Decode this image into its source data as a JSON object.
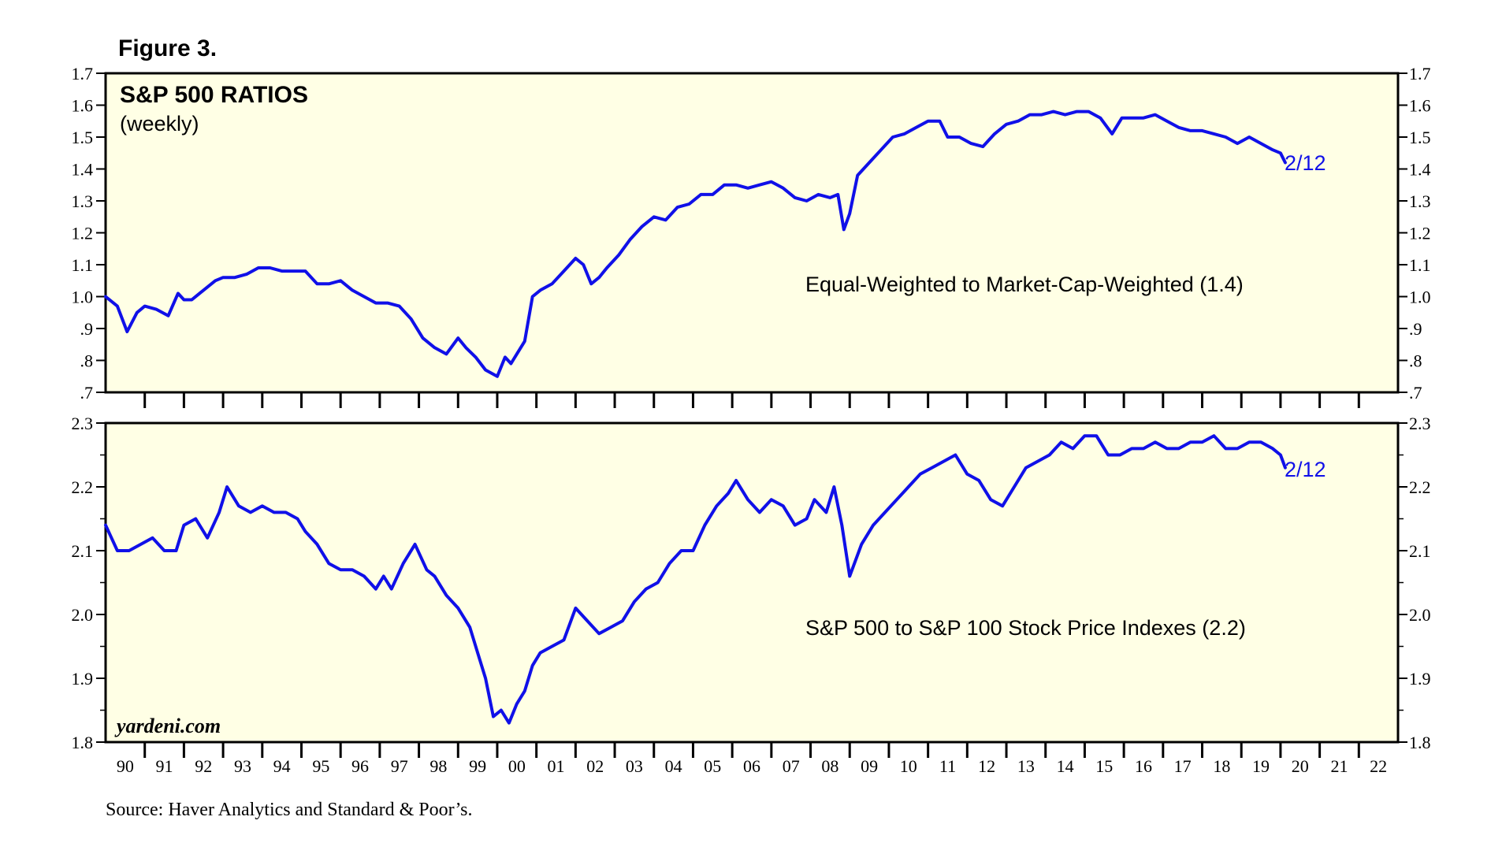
{
  "figure_label": "Figure 3.",
  "source_note": "Source: Haver Analytics and Standard & Poor’s.",
  "watermark": "yardeni.com",
  "colors": {
    "panel_bg": "#FFFFE5",
    "line": "#1010E8",
    "label": "#1010E8",
    "axis": "#000000"
  },
  "chart_data": [
    {
      "type": "line",
      "title": "S&P 500 RATIOS",
      "subtitle": "(weekly)",
      "series_label": "Equal-Weighted to Market-Cap-Weighted (1.4)",
      "end_label": "2/12",
      "ylim": [
        0.7,
        1.7
      ],
      "y_ticks": [
        0.7,
        0.8,
        0.9,
        1.0,
        1.1,
        1.2,
        1.3,
        1.4,
        1.5,
        1.6,
        1.7
      ],
      "y_tick_labels": [
        ".7",
        ".8",
        ".9",
        "1.0",
        "1.1",
        "1.2",
        "1.3",
        "1.4",
        "1.5",
        "1.6",
        "1.7"
      ],
      "xlim": [
        1990,
        2023
      ],
      "x": [
        1990.0,
        1990.3,
        1990.55,
        1990.8,
        1991.0,
        1991.3,
        1991.6,
        1991.85,
        1992.0,
        1992.2,
        1992.5,
        1992.8,
        1993.0,
        1993.3,
        1993.6,
        1993.9,
        1994.2,
        1994.5,
        1994.8,
        1995.1,
        1995.4,
        1995.7,
        1996.0,
        1996.3,
        1996.6,
        1996.9,
        1997.2,
        1997.5,
        1997.8,
        1998.1,
        1998.4,
        1998.7,
        1999.0,
        1999.2,
        1999.45,
        1999.7,
        2000.0,
        2000.2,
        2000.35,
        2000.5,
        2000.7,
        2000.9,
        2001.1,
        2001.4,
        2001.7,
        2002.0,
        2002.2,
        2002.4,
        2002.6,
        2002.8,
        2003.1,
        2003.4,
        2003.7,
        2004.0,
        2004.3,
        2004.6,
        2004.9,
        2005.2,
        2005.5,
        2005.8,
        2006.1,
        2006.4,
        2006.7,
        2007.0,
        2007.3,
        2007.6,
        2007.9,
        2008.2,
        2008.5,
        2008.7,
        2008.85,
        2009.0,
        2009.2,
        2009.5,
        2009.8,
        2010.1,
        2010.4,
        2010.7,
        2011.0,
        2011.3,
        2011.5,
        2011.8,
        2012.1,
        2012.4,
        2012.7,
        2013.0,
        2013.3,
        2013.6,
        2013.9,
        2014.2,
        2014.5,
        2014.8,
        2015.1,
        2015.4,
        2015.7,
        2015.95,
        2016.2,
        2016.5,
        2016.8,
        2017.1,
        2017.4,
        2017.7,
        2018.0,
        2018.3,
        2018.6,
        2018.9,
        2019.2,
        2019.5,
        2019.8,
        2020.0,
        2020.12
      ],
      "values": [
        1.0,
        0.97,
        0.89,
        0.95,
        0.97,
        0.96,
        0.94,
        1.01,
        0.99,
        0.99,
        1.02,
        1.05,
        1.06,
        1.06,
        1.07,
        1.09,
        1.09,
        1.08,
        1.08,
        1.08,
        1.04,
        1.04,
        1.05,
        1.02,
        1.0,
        0.98,
        0.98,
        0.97,
        0.93,
        0.87,
        0.84,
        0.82,
        0.87,
        0.84,
        0.81,
        0.77,
        0.75,
        0.81,
        0.79,
        0.82,
        0.86,
        1.0,
        1.02,
        1.04,
        1.08,
        1.12,
        1.1,
        1.04,
        1.06,
        1.09,
        1.13,
        1.18,
        1.22,
        1.25,
        1.24,
        1.28,
        1.29,
        1.32,
        1.32,
        1.35,
        1.35,
        1.34,
        1.35,
        1.36,
        1.34,
        1.31,
        1.3,
        1.32,
        1.31,
        1.32,
        1.21,
        1.26,
        1.38,
        1.42,
        1.46,
        1.5,
        1.51,
        1.53,
        1.55,
        1.55,
        1.5,
        1.5,
        1.48,
        1.47,
        1.51,
        1.54,
        1.55,
        1.57,
        1.57,
        1.58,
        1.57,
        1.58,
        1.58,
        1.56,
        1.51,
        1.56,
        1.56,
        1.56,
        1.57,
        1.55,
        1.53,
        1.52,
        1.52,
        1.51,
        1.5,
        1.48,
        1.5,
        1.48,
        1.46,
        1.45,
        1.42
      ]
    },
    {
      "type": "line",
      "series_label": "S&P 500 to S&P 100 Stock Price Indexes (2.2)",
      "end_label": "2/12",
      "ylim": [
        1.8,
        2.3
      ],
      "y_ticks": [
        1.8,
        1.9,
        2.0,
        2.1,
        2.2,
        2.3
      ],
      "y_tick_labels": [
        "1.8",
        "1.9",
        "2.0",
        "2.1",
        "2.2",
        "2.3"
      ],
      "xlim": [
        1990,
        2023
      ],
      "x_tick_labels": [
        "90",
        "91",
        "92",
        "93",
        "94",
        "95",
        "96",
        "97",
        "98",
        "99",
        "00",
        "01",
        "02",
        "03",
        "04",
        "05",
        "06",
        "07",
        "08",
        "09",
        "10",
        "11",
        "12",
        "13",
        "14",
        "15",
        "16",
        "17",
        "18",
        "19",
        "20",
        "21",
        "22"
      ],
      "x": [
        1990.0,
        1990.3,
        1990.6,
        1990.9,
        1991.2,
        1991.5,
        1991.8,
        1992.0,
        1992.3,
        1992.6,
        1992.9,
        1993.1,
        1993.4,
        1993.7,
        1994.0,
        1994.3,
        1994.6,
        1994.9,
        1995.1,
        1995.4,
        1995.7,
        1996.0,
        1996.3,
        1996.6,
        1996.9,
        1997.1,
        1997.3,
        1997.6,
        1997.9,
        1998.2,
        1998.4,
        1998.7,
        1999.0,
        1999.3,
        1999.5,
        1999.7,
        1999.9,
        2000.1,
        2000.3,
        2000.5,
        2000.7,
        2000.9,
        2001.1,
        2001.4,
        2001.7,
        2002.0,
        2002.3,
        2002.6,
        2002.9,
        2003.2,
        2003.5,
        2003.8,
        2004.1,
        2004.4,
        2004.7,
        2005.0,
        2005.3,
        2005.6,
        2005.9,
        2006.1,
        2006.4,
        2006.7,
        2007.0,
        2007.3,
        2007.6,
        2007.9,
        2008.1,
        2008.4,
        2008.6,
        2008.8,
        2009.0,
        2009.3,
        2009.6,
        2009.9,
        2010.2,
        2010.5,
        2010.8,
        2011.1,
        2011.4,
        2011.7,
        2012.0,
        2012.3,
        2012.6,
        2012.9,
        2013.2,
        2013.5,
        2013.8,
        2014.1,
        2014.4,
        2014.7,
        2015.0,
        2015.3,
        2015.6,
        2015.9,
        2016.2,
        2016.5,
        2016.8,
        2017.1,
        2017.4,
        2017.7,
        2018.0,
        2018.3,
        2018.6,
        2018.9,
        2019.2,
        2019.5,
        2019.8,
        2020.0,
        2020.12
      ],
      "values": [
        2.14,
        2.1,
        2.1,
        2.11,
        2.12,
        2.1,
        2.1,
        2.14,
        2.15,
        2.12,
        2.16,
        2.2,
        2.17,
        2.16,
        2.17,
        2.16,
        2.16,
        2.15,
        2.13,
        2.11,
        2.08,
        2.07,
        2.07,
        2.06,
        2.04,
        2.06,
        2.04,
        2.08,
        2.11,
        2.07,
        2.06,
        2.03,
        2.01,
        1.98,
        1.94,
        1.9,
        1.84,
        1.85,
        1.83,
        1.86,
        1.88,
        1.92,
        1.94,
        1.95,
        1.96,
        2.01,
        1.99,
        1.97,
        1.98,
        1.99,
        2.02,
        2.04,
        2.05,
        2.08,
        2.1,
        2.1,
        2.14,
        2.17,
        2.19,
        2.21,
        2.18,
        2.16,
        2.18,
        2.17,
        2.14,
        2.15,
        2.18,
        2.16,
        2.2,
        2.14,
        2.06,
        2.11,
        2.14,
        2.16,
        2.18,
        2.2,
        2.22,
        2.23,
        2.24,
        2.25,
        2.22,
        2.21,
        2.18,
        2.17,
        2.2,
        2.23,
        2.24,
        2.25,
        2.27,
        2.26,
        2.28,
        2.28,
        2.25,
        2.25,
        2.26,
        2.26,
        2.27,
        2.26,
        2.26,
        2.27,
        2.27,
        2.28,
        2.26,
        2.26,
        2.27,
        2.27,
        2.26,
        2.25,
        2.23
      ]
    }
  ]
}
